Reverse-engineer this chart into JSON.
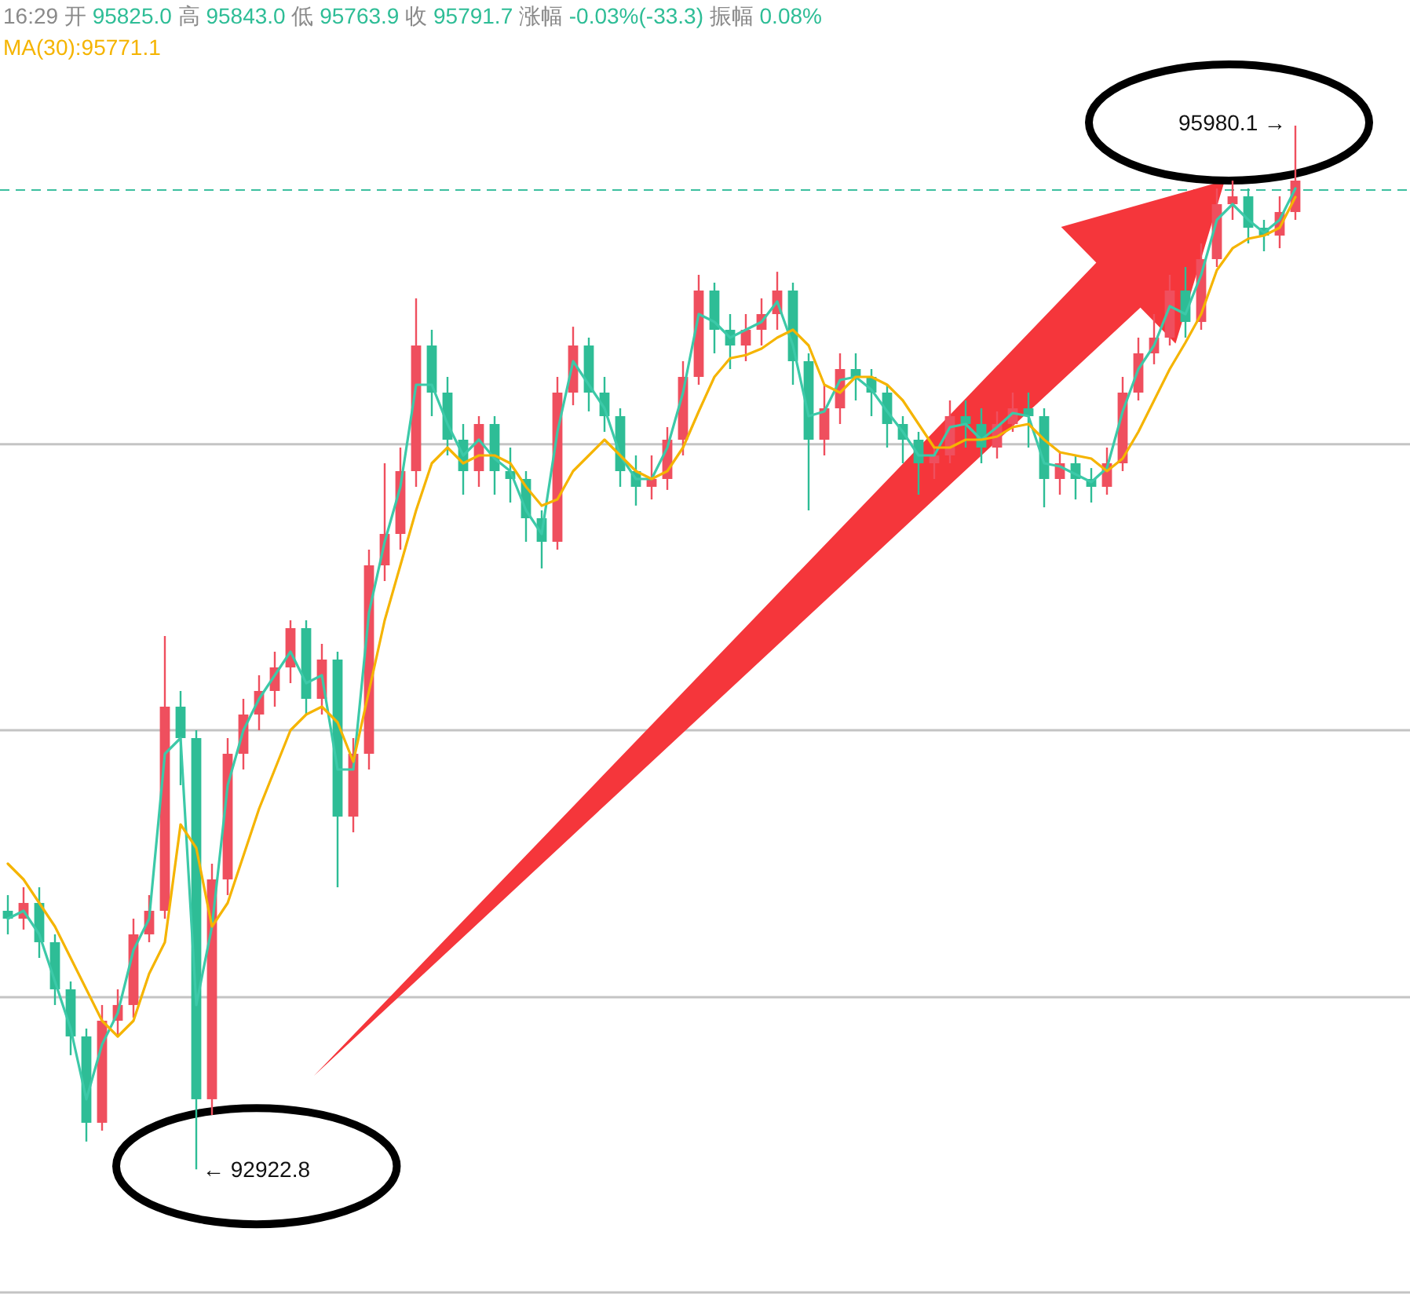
{
  "chart_data": {
    "type": "candlestick",
    "categories": [
      null,
      null,
      null,
      null,
      null,
      null,
      null,
      null,
      null,
      null,
      null,
      null,
      null,
      null,
      null,
      null,
      null,
      null,
      null,
      null,
      null,
      null,
      null,
      null,
      null,
      null,
      null,
      null,
      null,
      null,
      null,
      null,
      null,
      null,
      null,
      null,
      null,
      null,
      null,
      null,
      null,
      null,
      null,
      null,
      null,
      null,
      null,
      null,
      null,
      null,
      null,
      null,
      null,
      null,
      null,
      null,
      null,
      null,
      null,
      null,
      null,
      null,
      null,
      null,
      null,
      null,
      null,
      null,
      null,
      null,
      null,
      null,
      null,
      null,
      null,
      null,
      null,
      null,
      null,
      null,
      null,
      null,
      null
    ],
    "ohlc": [
      [
        93680,
        93726,
        93611,
        93657
      ],
      [
        93657,
        93749,
        93625,
        93703
      ],
      [
        93703,
        93749,
        93542,
        93588
      ],
      [
        93588,
        93611,
        93404,
        93450
      ],
      [
        93450,
        93473,
        93257,
        93312
      ],
      [
        93312,
        93335,
        93004,
        93059
      ],
      [
        93059,
        93404,
        93036,
        93358
      ],
      [
        93358,
        93450,
        93312,
        93404
      ],
      [
        93404,
        93657,
        93367,
        93611
      ],
      [
        93611,
        93726,
        93588,
        93680
      ],
      [
        93680,
        94485,
        93657,
        94278
      ],
      [
        94278,
        94324,
        94048,
        94186
      ],
      [
        94186,
        94209,
        92922.8,
        93128
      ],
      [
        93128,
        93818,
        93082,
        93772
      ],
      [
        93772,
        94186,
        93726,
        94140
      ],
      [
        94140,
        94301,
        94094,
        94255
      ],
      [
        94255,
        94370,
        94209,
        94324
      ],
      [
        94324,
        94439,
        94278,
        94393
      ],
      [
        94393,
        94531,
        94347,
        94508
      ],
      [
        94508,
        94531,
        94255,
        94301
      ],
      [
        94301,
        94462,
        94255,
        94416
      ],
      [
        94416,
        94439,
        93749,
        93956
      ],
      [
        93956,
        94186,
        93910,
        94140
      ],
      [
        94140,
        94738,
        94094,
        94692
      ],
      [
        94692,
        94991,
        94646,
        94784
      ],
      [
        94784,
        95037,
        94738,
        94968
      ],
      [
        94968,
        95474,
        94922,
        95336
      ],
      [
        95336,
        95382,
        95129,
        95198
      ],
      [
        95198,
        95244,
        95014,
        95060
      ],
      [
        95060,
        95106,
        94899,
        94968
      ],
      [
        94968,
        95129,
        94922,
        95106
      ],
      [
        95106,
        95129,
        94899,
        94968
      ],
      [
        94968,
        95037,
        94876,
        94945
      ],
      [
        94945,
        94968,
        94761,
        94830
      ],
      [
        94830,
        94853,
        94683,
        94761
      ],
      [
        94761,
        95244,
        94738,
        95198
      ],
      [
        95198,
        95391,
        95161,
        95336
      ],
      [
        95336,
        95359,
        95143,
        95198
      ],
      [
        95198,
        95244,
        95083,
        95129
      ],
      [
        95129,
        95152,
        94922,
        94968
      ],
      [
        94968,
        95014,
        94867,
        94922
      ],
      [
        94922,
        95014,
        94885,
        94945
      ],
      [
        94945,
        95097,
        94913,
        95060
      ],
      [
        95060,
        95290,
        95014,
        95244
      ],
      [
        95244,
        95543,
        95221,
        95497
      ],
      [
        95497,
        95520,
        95313,
        95382
      ],
      [
        95382,
        95428,
        95267,
        95336
      ],
      [
        95336,
        95428,
        95290,
        95382
      ],
      [
        95382,
        95474,
        95336,
        95428
      ],
      [
        95428,
        95552,
        95382,
        95497
      ],
      [
        95497,
        95520,
        95221,
        95290
      ],
      [
        95290,
        95313,
        94853,
        95060
      ],
      [
        95060,
        95221,
        95014,
        95152
      ],
      [
        95152,
        95313,
        95106,
        95267
      ],
      [
        95267,
        95313,
        95175,
        95244
      ],
      [
        95244,
        95267,
        95129,
        95198
      ],
      [
        95198,
        95221,
        95037,
        95106
      ],
      [
        95106,
        95129,
        94991,
        95060
      ],
      [
        95060,
        95083,
        94899,
        94991
      ],
      [
        94991,
        95037,
        94945,
        95014
      ],
      [
        95014,
        95175,
        94991,
        95129
      ],
      [
        95129,
        95175,
        95037,
        95106
      ],
      [
        95106,
        95152,
        94991,
        95037
      ],
      [
        95037,
        95143,
        95005,
        95106
      ],
      [
        95106,
        95198,
        95083,
        95152
      ],
      [
        95152,
        95198,
        95037,
        95129
      ],
      [
        95129,
        95152,
        94862,
        94945
      ],
      [
        94945,
        95023,
        94899,
        94991
      ],
      [
        94991,
        95014,
        94885,
        94945
      ],
      [
        94945,
        94977,
        94876,
        94922
      ],
      [
        94922,
        95037,
        94899,
        94991
      ],
      [
        94991,
        95244,
        94968,
        95198
      ],
      [
        95198,
        95359,
        95175,
        95313
      ],
      [
        95313,
        95428,
        95281,
        95359
      ],
      [
        95359,
        95543,
        95336,
        95497
      ],
      [
        95497,
        95566,
        95359,
        95405
      ],
      [
        95405,
        95635,
        95382,
        95589
      ],
      [
        95589,
        95796,
        95566,
        95750
      ],
      [
        95750,
        95819,
        95704,
        95773
      ],
      [
        95773,
        95796,
        95635,
        95681
      ],
      [
        95681,
        95704,
        95612,
        95658
      ],
      [
        95658,
        95773,
        95621,
        95727
      ],
      [
        95727,
        95980.1,
        95704,
        95819
      ]
    ],
    "colors": [
      "#2ebd96",
      "#ef4f5e",
      "#2ebd96",
      "#2ebd96",
      "#2ebd96",
      "#2ebd96",
      "#ef4f5e",
      "#ef4f5e",
      "#ef4f5e",
      "#ef4f5e",
      "#ef4f5e",
      "#2ebd96",
      "#2ebd96",
      "#ef4f5e",
      "#ef4f5e",
      "#ef4f5e",
      "#ef4f5e",
      "#ef4f5e",
      "#ef4f5e",
      "#2ebd96",
      "#ef4f5e",
      "#2ebd96",
      "#ef4f5e",
      "#ef4f5e",
      "#ef4f5e",
      "#ef4f5e",
      "#ef4f5e",
      "#2ebd96",
      "#2ebd96",
      "#2ebd96",
      "#ef4f5e",
      "#2ebd96",
      "#2ebd96",
      "#2ebd96",
      "#2ebd96",
      "#ef4f5e",
      "#ef4f5e",
      "#2ebd96",
      "#2ebd96",
      "#2ebd96",
      "#2ebd96",
      "#ef4f5e",
      "#ef4f5e",
      "#ef4f5e",
      "#ef4f5e",
      "#2ebd96",
      "#2ebd96",
      "#ef4f5e",
      "#ef4f5e",
      "#ef4f5e",
      "#2ebd96",
      "#2ebd96",
      "#ef4f5e",
      "#ef4f5e",
      "#2ebd96",
      "#2ebd96",
      "#2ebd96",
      "#2ebd96",
      "#2ebd96",
      "#ef4f5e",
      "#ef4f5e",
      "#2ebd96",
      "#2ebd96",
      "#ef4f5e",
      "#ef4f5e",
      "#2ebd96",
      "#2ebd96",
      "#ef4f5e",
      "#2ebd96",
      "#2ebd96",
      "#ef4f5e",
      "#ef4f5e",
      "#ef4f5e",
      "#ef4f5e",
      "#ef4f5e",
      "#2ebd96",
      "#ef4f5e",
      "#ef4f5e",
      "#ef4f5e",
      "#2ebd96",
      "#2ebd96",
      "#ef4f5e",
      "#ef4f5e"
    ],
    "series": [
      {
        "type": "line",
        "color": "#3cc9a8",
        "values": [
          93657,
          93680,
          93611,
          93473,
          93335,
          93128,
          93289,
          93381,
          93565,
          93657,
          94140,
          94186,
          93404,
          93634,
          94048,
          94209,
          94301,
          94370,
          94439,
          94347,
          94370,
          94094,
          94094,
          94554,
          94761,
          94922,
          95221,
          95221,
          95106,
          95014,
          95060,
          95005,
          94968,
          94853,
          94784,
          95083,
          95290,
          95221,
          95152,
          95014,
          94945,
          94945,
          95037,
          95198,
          95428,
          95405,
          95359,
          95382,
          95405,
          95465,
          95336,
          95129,
          95143,
          95235,
          95244,
          95207,
          95143,
          95083,
          95014,
          95014,
          95097,
          95106,
          95060,
          95097,
          95138,
          95129,
          94991,
          94982,
          94959,
          94936,
          94977,
          95143,
          95267,
          95336,
          95451,
          95428,
          95543,
          95704,
          95750,
          95704,
          95667,
          95704,
          95796
        ]
      },
      {
        "type": "line",
        "color": "#f5b400",
        "values": [
          93818,
          93772,
          93703,
          93634,
          93542,
          93450,
          93358,
          93312,
          93358,
          93496,
          93588,
          93933,
          93864,
          93634,
          93703,
          93841,
          93979,
          94094,
          94209,
          94255,
          94278,
          94232,
          94117,
          94324,
          94531,
          94692,
          94853,
          94991,
          95037,
          94991,
          95014,
          95014,
          94991,
          94922,
          94867,
          94885,
          94968,
          95014,
          95060,
          95014,
          94968,
          94945,
          94968,
          95037,
          95143,
          95244,
          95299,
          95308,
          95327,
          95359,
          95382,
          95336,
          95221,
          95198,
          95244,
          95244,
          95221,
          95175,
          95106,
          95037,
          95037,
          95060,
          95060,
          95069,
          95097,
          95106,
          95060,
          95023,
          95014,
          95005,
          94968,
          95005,
          95083,
          95175,
          95267,
          95345,
          95428,
          95557,
          95621,
          95649,
          95658,
          95681,
          95771
        ]
      }
    ],
    "yticks": [
      {
        "value": 92562,
        "label": null
      },
      {
        "value": 93427,
        "label": null
      },
      {
        "value": 94209,
        "label": null
      },
      {
        "value": 95047,
        "label": null
      }
    ],
    "grid": "y",
    "ref_lines": [
      {
        "axis": "y",
        "value": 95791.7,
        "color": "#3cbf9f",
        "line_style": "dashed"
      }
    ],
    "annotations": [
      "16:29 开 95825.0 高 95843.0 低 95763.9 收 95791.7 涨幅 -0.03%(-33.3) 振幅 0.08%",
      "MA(30):95771.1",
      "95980.1 →",
      "← 92922.8"
    ]
  }
}
